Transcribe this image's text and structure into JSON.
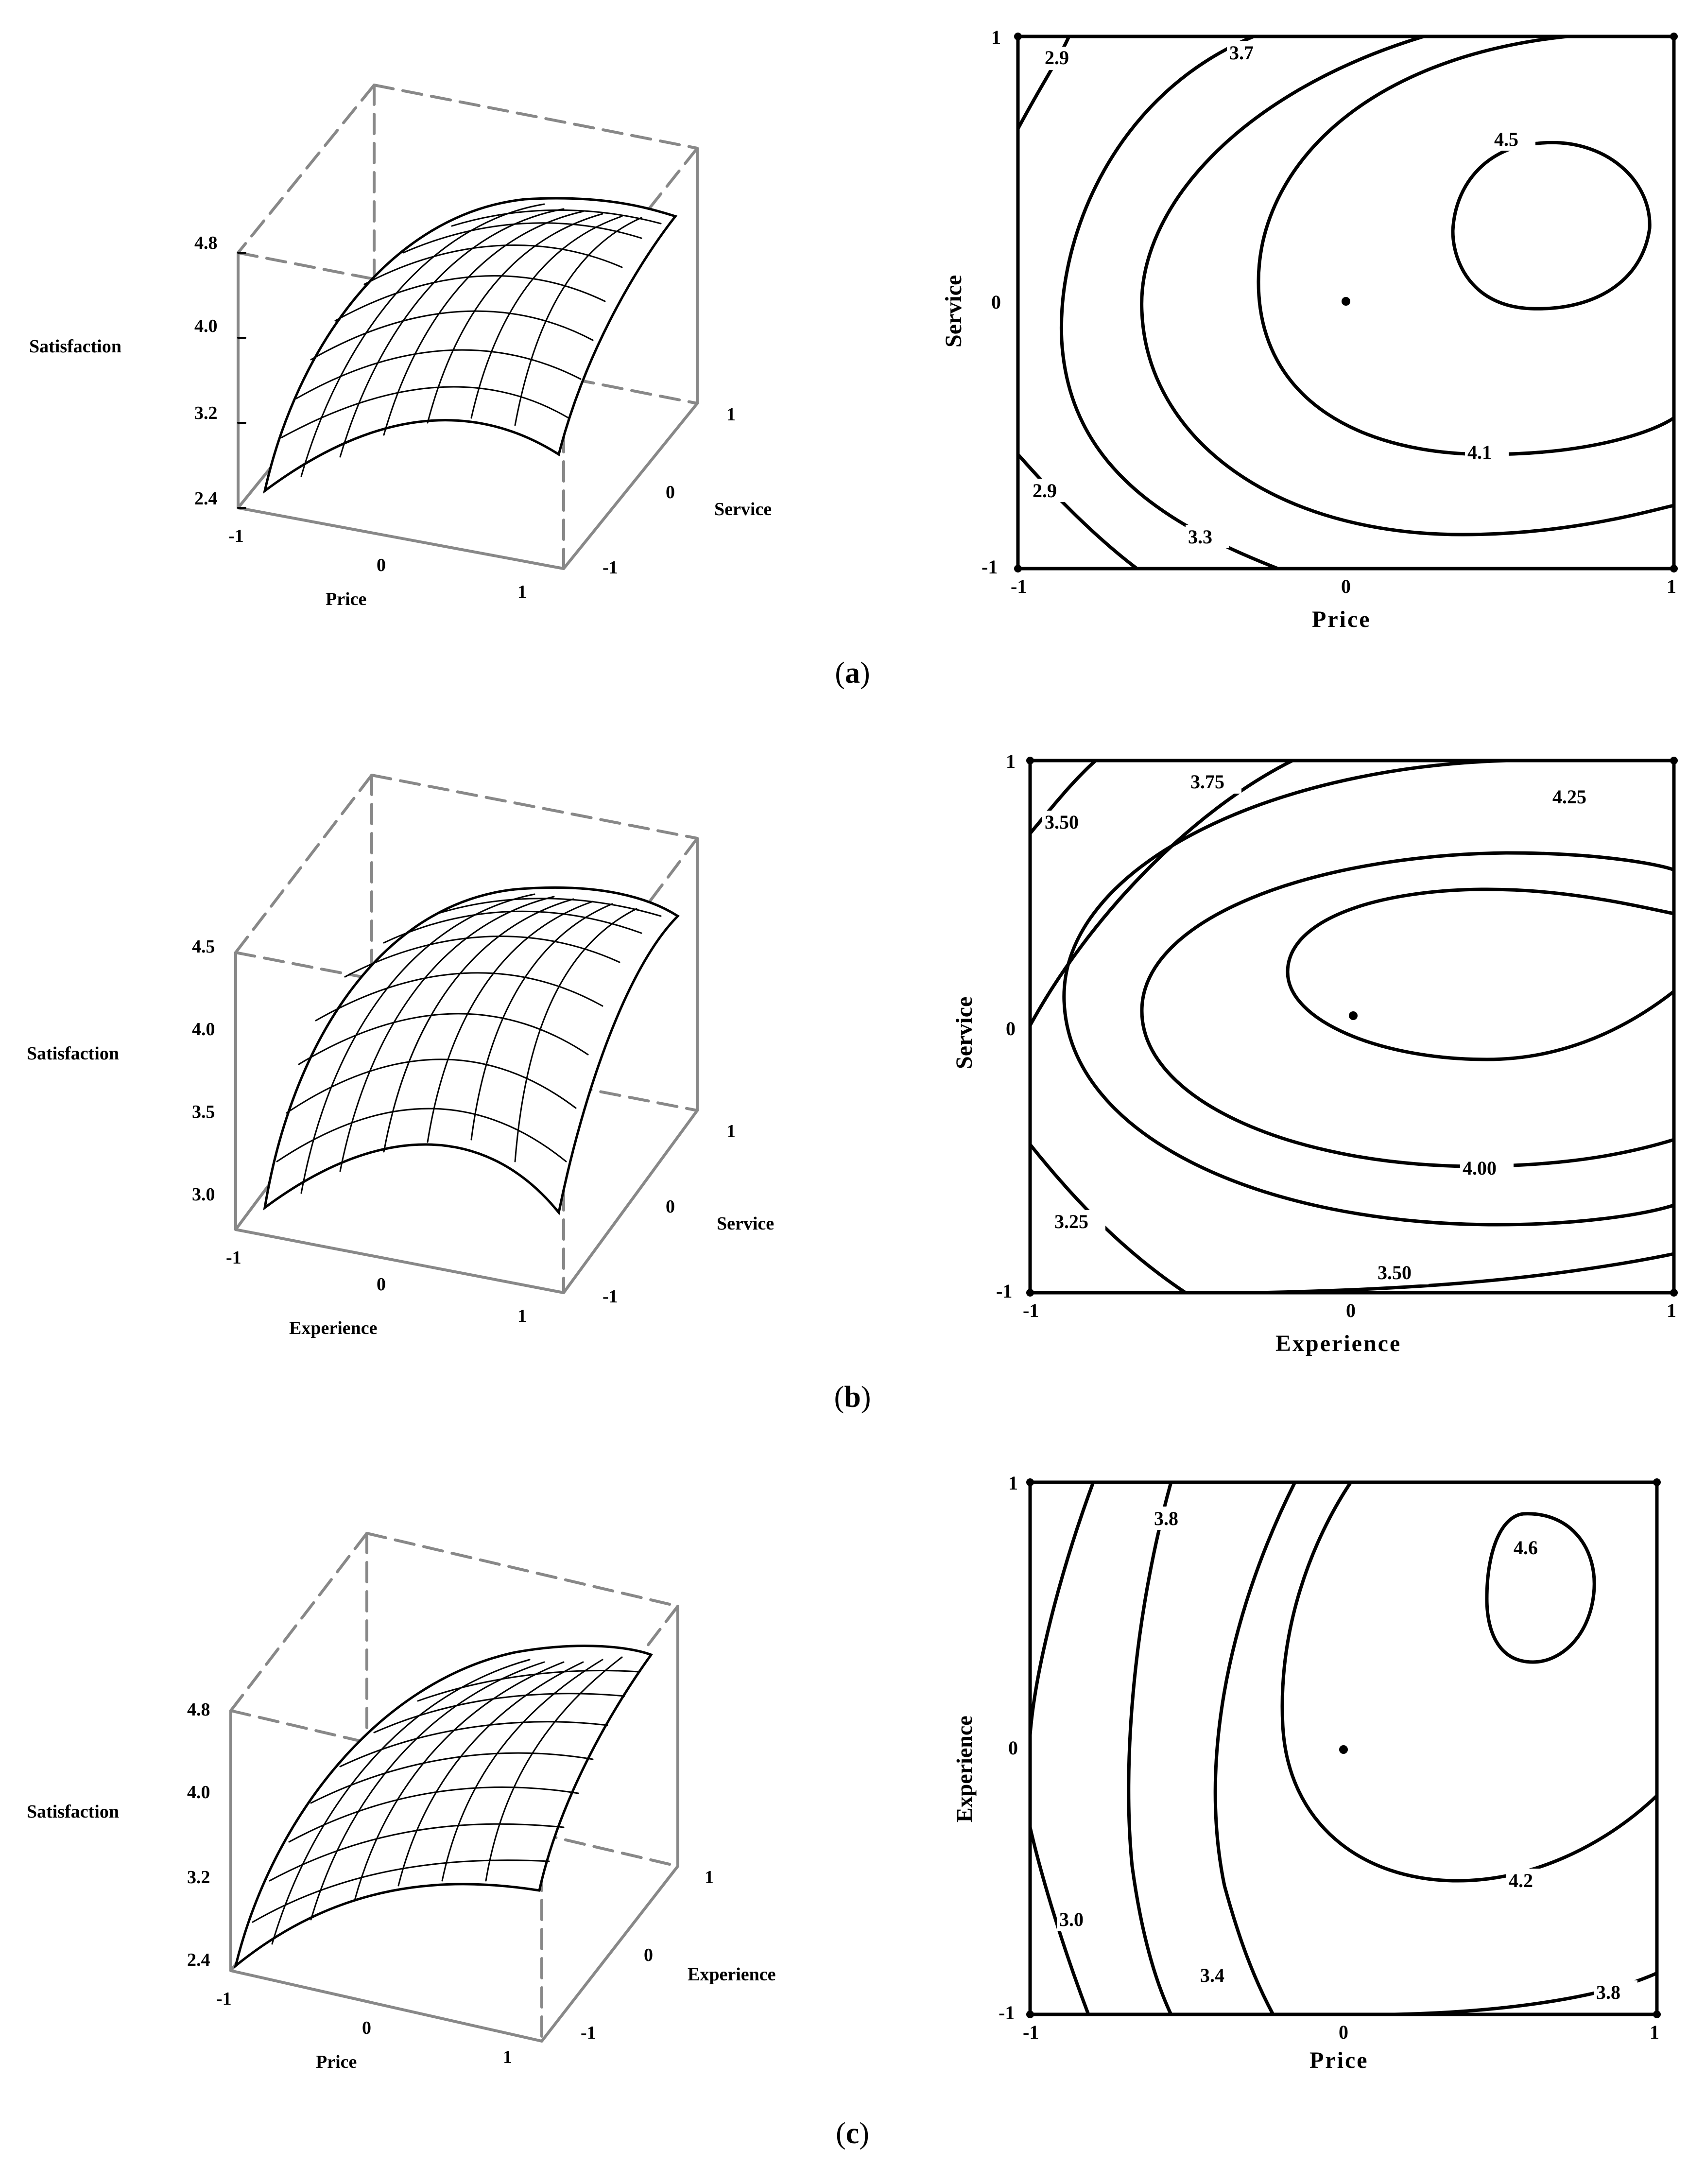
{
  "chart_data": [
    {
      "type": "surface3d",
      "panel": "a",
      "zlabel": "Satisfaction",
      "xlabel": "Price",
      "ylabel": "Service",
      "zticks": [
        "4.8",
        "4.0",
        "3.2",
        "2.4"
      ],
      "xticks": [
        "-1",
        "0",
        "1"
      ],
      "yticks": [
        "-1",
        "0",
        "1"
      ],
      "zlim": [
        2.4,
        4.8
      ],
      "surface_peak": 4.55
    },
    {
      "type": "contour",
      "panel": "a",
      "xlabel": "Price",
      "ylabel": "Service",
      "xticks": [
        "-1",
        "0",
        "1"
      ],
      "yticks": [
        "-1",
        "0",
        "1"
      ],
      "xlim": [
        -1,
        1
      ],
      "ylim": [
        -1,
        1
      ],
      "levels": [
        "2.9",
        "3.3",
        "3.7",
        "4.1",
        "4.5"
      ],
      "contour_labels": [
        "2.9",
        "3.7",
        "4.5",
        "4.1",
        "2.9",
        "3.3"
      ],
      "center_point": [
        0,
        0
      ]
    },
    {
      "type": "surface3d",
      "panel": "b",
      "zlabel": "Satisfaction",
      "xlabel": "Experience",
      "ylabel": "Service",
      "zticks": [
        "4.5",
        "4.0",
        "3.5",
        "3.0"
      ],
      "xticks": [
        "-1",
        "0",
        "1"
      ],
      "yticks": [
        "-1",
        "0",
        "1"
      ],
      "zlim": [
        2.9,
        4.5
      ],
      "surface_peak": 4.3
    },
    {
      "type": "contour",
      "panel": "b",
      "xlabel": "Experience",
      "ylabel": "Service",
      "xticks": [
        "-1",
        "0",
        "1"
      ],
      "yticks": [
        "-1",
        "0",
        "1"
      ],
      "xlim": [
        -1,
        1
      ],
      "ylim": [
        -1,
        1
      ],
      "levels": [
        "3.25",
        "3.50",
        "3.75",
        "4.00",
        "4.25"
      ],
      "contour_labels": [
        "3.50",
        "3.75",
        "4.25",
        "4.00",
        "3.25",
        "3.50"
      ],
      "center_point": [
        0,
        0
      ]
    },
    {
      "type": "surface3d",
      "panel": "c",
      "zlabel": "Satisfaction",
      "xlabel": "Price",
      "ylabel": "Experience",
      "zticks": [
        "4.8",
        "4.0",
        "3.2",
        "2.4"
      ],
      "xticks": [
        "-1",
        "0",
        "1"
      ],
      "yticks": [
        "-1",
        "0",
        "1"
      ],
      "zlim": [
        2.4,
        4.8
      ],
      "surface_peak": 4.65
    },
    {
      "type": "contour",
      "panel": "c",
      "xlabel": "Price",
      "ylabel": "Experience",
      "xticks": [
        "-1",
        "0",
        "1"
      ],
      "yticks": [
        "-1",
        "0",
        "1"
      ],
      "xlim": [
        -1,
        1
      ],
      "ylim": [
        -1,
        1
      ],
      "levels": [
        "3.0",
        "3.4",
        "3.8",
        "4.2",
        "4.6"
      ],
      "contour_labels": [
        "3.8",
        "4.6",
        "4.2",
        "3.0",
        "3.4",
        "3.8"
      ],
      "center_point": [
        0,
        0
      ]
    }
  ],
  "captions": [
    "a",
    "b",
    "c"
  ]
}
